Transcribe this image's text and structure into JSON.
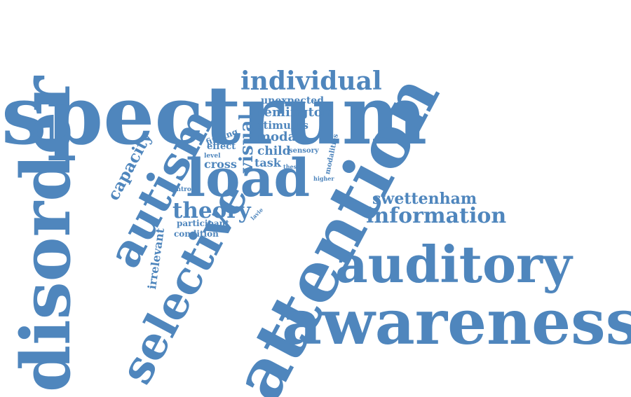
{
  "palette": {
    "word_color": "#4f86bd",
    "background": "#ffffff"
  },
  "words": [
    {
      "id": "spectrum",
      "text": "spectrum"
    },
    {
      "id": "disorder",
      "text": "disorder"
    },
    {
      "id": "attention",
      "text": "attention"
    },
    {
      "id": "awareness",
      "text": "awareness"
    },
    {
      "id": "auditory",
      "text": "auditory"
    },
    {
      "id": "selective",
      "text": "selective"
    },
    {
      "id": "autism",
      "text": "autism"
    },
    {
      "id": "load",
      "text": "load"
    },
    {
      "id": "individual",
      "text": "individual"
    },
    {
      "id": "theory",
      "text": "theory"
    },
    {
      "id": "information",
      "text": "information"
    },
    {
      "id": "swettenham",
      "text": "swettenham"
    },
    {
      "id": "capacity",
      "text": "capacity"
    },
    {
      "id": "visual",
      "text": "visual"
    },
    {
      "id": "remington",
      "text": "remington"
    },
    {
      "id": "unexpected",
      "text": "unexpected"
    },
    {
      "id": "stimulus",
      "text": "stimulus"
    },
    {
      "id": "modal",
      "text": "modal"
    },
    {
      "id": "child",
      "text": "child"
    },
    {
      "id": "task",
      "text": "task"
    },
    {
      "id": "cross",
      "text": "cross"
    },
    {
      "id": "effect",
      "text": "effect"
    },
    {
      "id": "finding",
      "text": "finding"
    },
    {
      "id": "level",
      "text": "level"
    },
    {
      "id": "sensory",
      "text": "sensory"
    },
    {
      "id": "thesis",
      "text": "thesis"
    },
    {
      "id": "modalities",
      "text": "modalities"
    },
    {
      "id": "higher",
      "text": "higher"
    },
    {
      "id": "control",
      "text": "control"
    },
    {
      "id": "irrelevant",
      "text": "irrelevant"
    },
    {
      "id": "lavie",
      "text": "lavie"
    },
    {
      "id": "participant",
      "text": "participant"
    },
    {
      "id": "condition",
      "text": "condition"
    }
  ]
}
